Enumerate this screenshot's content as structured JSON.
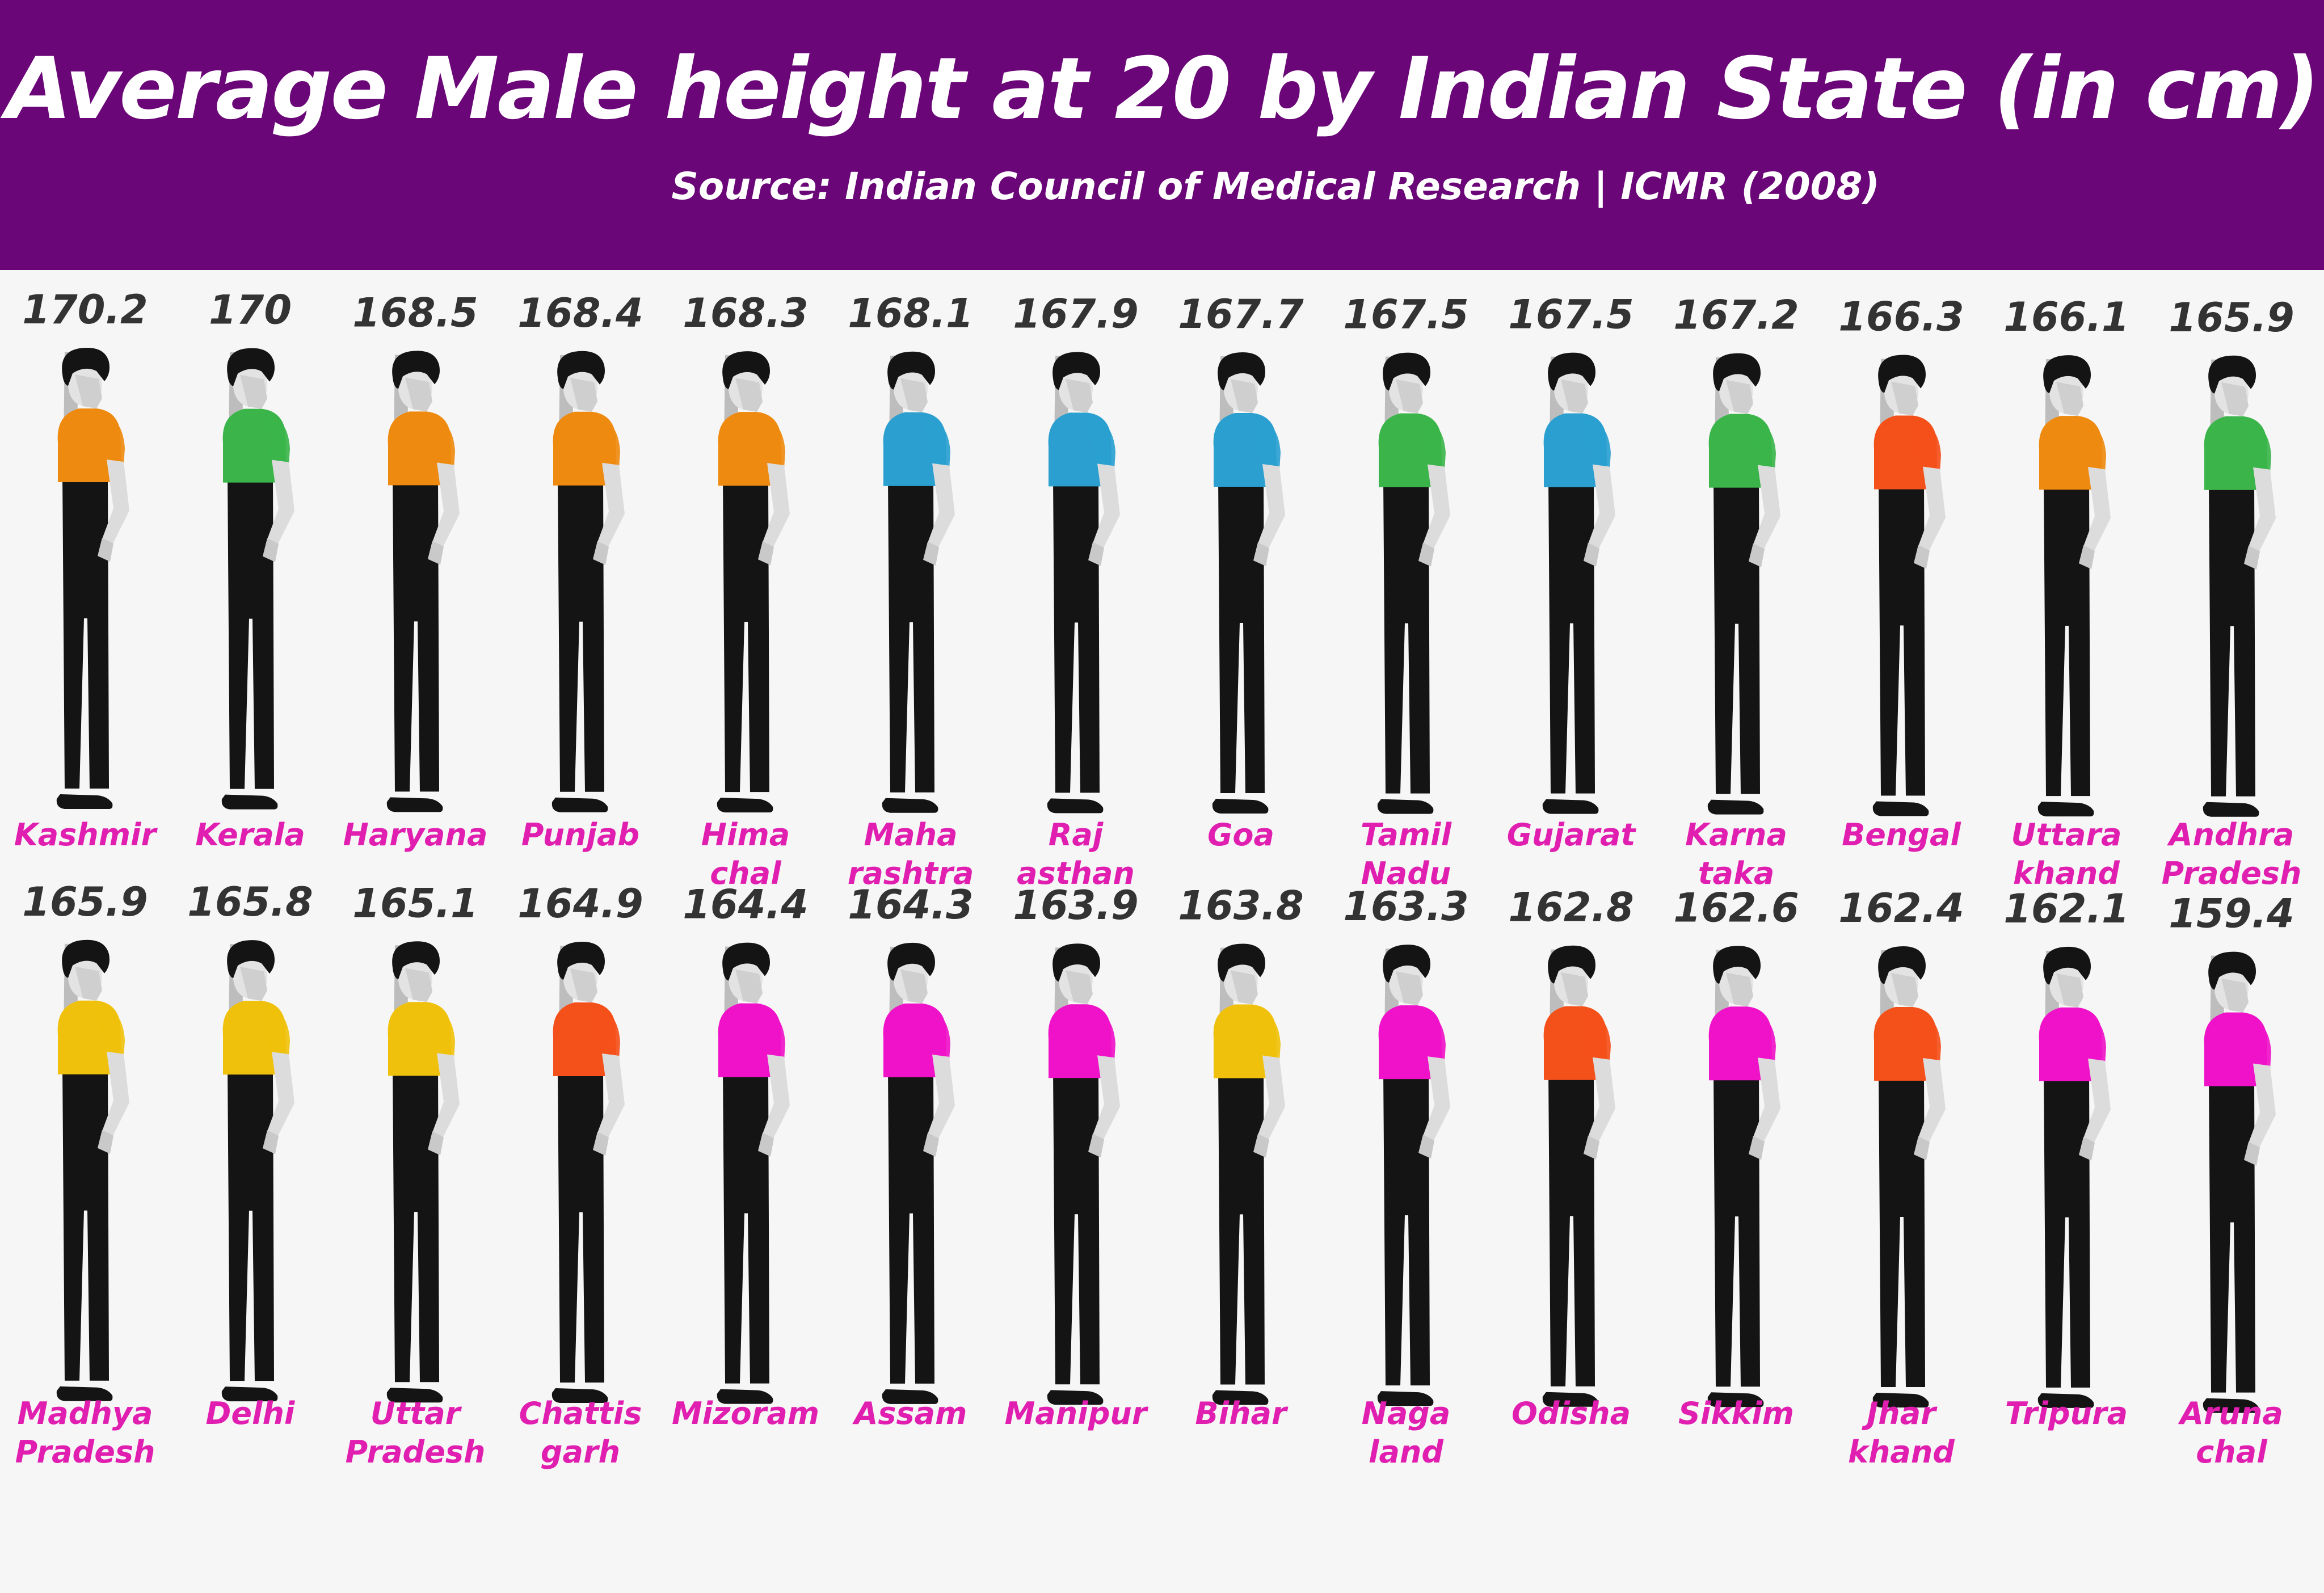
{
  "header": {
    "title": "Average Male height at 20 by Indian State (in cm)",
    "source": "Source: Indian Council of Medical Research | ICMR  (2008)"
  },
  "chart_data": {
    "type": "pictogram",
    "unit": "cm",
    "series": [
      {
        "state": "Kashmir",
        "label_lines": [
          "Kashmir"
        ],
        "value": 170.2,
        "value_label": "170.2",
        "shirt_color": "#ee8a0f"
      },
      {
        "state": "Kerala",
        "label_lines": [
          "Kerala"
        ],
        "value": 170,
        "value_label": "170",
        "shirt_color": "#3bb54a"
      },
      {
        "state": "Haryana",
        "label_lines": [
          "Haryana"
        ],
        "value": 168.5,
        "value_label": "168.5",
        "shirt_color": "#ee8a0f"
      },
      {
        "state": "Punjab",
        "label_lines": [
          "Punjab"
        ],
        "value": 168.4,
        "value_label": "168.4",
        "shirt_color": "#ee8a0f"
      },
      {
        "state": "Himachal",
        "label_lines": [
          "Hima",
          "chal"
        ],
        "value": 168.3,
        "value_label": "168.3",
        "shirt_color": "#ee8a0f"
      },
      {
        "state": "Maharashtra",
        "label_lines": [
          "Maha",
          "rashtra"
        ],
        "value": 168.1,
        "value_label": "168.1",
        "shirt_color": "#2a9fd0"
      },
      {
        "state": "Rajasthan",
        "label_lines": [
          "Raj",
          "asthan"
        ],
        "value": 167.9,
        "value_label": "167.9",
        "shirt_color": "#2a9fd0"
      },
      {
        "state": "Goa",
        "label_lines": [
          "Goa"
        ],
        "value": 167.7,
        "value_label": "167.7",
        "shirt_color": "#2a9fd0"
      },
      {
        "state": "Tamil Nadu",
        "label_lines": [
          "Tamil",
          "Nadu"
        ],
        "value": 167.5,
        "value_label": "167.5",
        "shirt_color": "#3bb54a"
      },
      {
        "state": "Gujarat",
        "label_lines": [
          "Gujarat"
        ],
        "value": 167.5,
        "value_label": "167.5",
        "shirt_color": "#2a9fd0"
      },
      {
        "state": "Karnataka",
        "label_lines": [
          "Karna",
          "taka"
        ],
        "value": 167.2,
        "value_label": "167.2",
        "shirt_color": "#3bb54a"
      },
      {
        "state": "Bengal",
        "label_lines": [
          "Bengal"
        ],
        "value": 166.3,
        "value_label": "166.3",
        "shirt_color": "#f4501a"
      },
      {
        "state": "Uttarakhand",
        "label_lines": [
          "Uttara",
          "khand"
        ],
        "value": 166.1,
        "value_label": "166.1",
        "shirt_color": "#ee8a0f"
      },
      {
        "state": "Andhra Pradesh",
        "label_lines": [
          "Andhra",
          "Pradesh"
        ],
        "value": 165.9,
        "value_label": "165.9",
        "shirt_color": "#3bb54a"
      },
      {
        "state": "Madhya Pradesh",
        "label_lines": [
          "Madhya",
          "Pradesh"
        ],
        "value": 165.9,
        "value_label": "165.9",
        "shirt_color": "#f0c10c"
      },
      {
        "state": "Delhi",
        "label_lines": [
          "Delhi"
        ],
        "value": 165.8,
        "value_label": "165.8",
        "shirt_color": "#f0c10c"
      },
      {
        "state": "Uttar Pradesh",
        "label_lines": [
          "Uttar",
          "Pradesh"
        ],
        "value": 165.1,
        "value_label": "165.1",
        "shirt_color": "#f0c10c"
      },
      {
        "state": "Chattisgarh",
        "label_lines": [
          "Chattis",
          "garh"
        ],
        "value": 164.9,
        "value_label": "164.9",
        "shirt_color": "#f4501a"
      },
      {
        "state": "Mizoram",
        "label_lines": [
          "Mizoram"
        ],
        "value": 164.4,
        "value_label": "164.4",
        "shirt_color": "#f012c8"
      },
      {
        "state": "Assam",
        "label_lines": [
          "Assam"
        ],
        "value": 164.3,
        "value_label": "164.3",
        "shirt_color": "#f012c8"
      },
      {
        "state": "Manipur",
        "label_lines": [
          "Manipur"
        ],
        "value": 163.9,
        "value_label": "163.9",
        "shirt_color": "#f012c8"
      },
      {
        "state": "Bihar",
        "label_lines": [
          "Bihar"
        ],
        "value": 163.8,
        "value_label": "163.8",
        "shirt_color": "#f0c10c"
      },
      {
        "state": "Nagaland",
        "label_lines": [
          "Naga",
          "land"
        ],
        "value": 163.3,
        "value_label": "163.3",
        "shirt_color": "#f012c8"
      },
      {
        "state": "Odisha",
        "label_lines": [
          "Odisha"
        ],
        "value": 162.8,
        "value_label": "162.8",
        "shirt_color": "#f4501a"
      },
      {
        "state": "Sikkim",
        "label_lines": [
          "Sikkim"
        ],
        "value": 162.6,
        "value_label": "162.6",
        "shirt_color": "#f012c8"
      },
      {
        "state": "Jharkhand",
        "label_lines": [
          "Jhar",
          "khand"
        ],
        "value": 162.4,
        "value_label": "162.4",
        "shirt_color": "#f4501a"
      },
      {
        "state": "Tripura",
        "label_lines": [
          "Tripura"
        ],
        "value": 162.1,
        "value_label": "162.1",
        "shirt_color": "#f012c8"
      },
      {
        "state": "Arunachal",
        "label_lines": [
          "Aruna",
          "chal"
        ],
        "value": 159.4,
        "value_label": "159.4",
        "shirt_color": "#f012c8"
      }
    ]
  }
}
